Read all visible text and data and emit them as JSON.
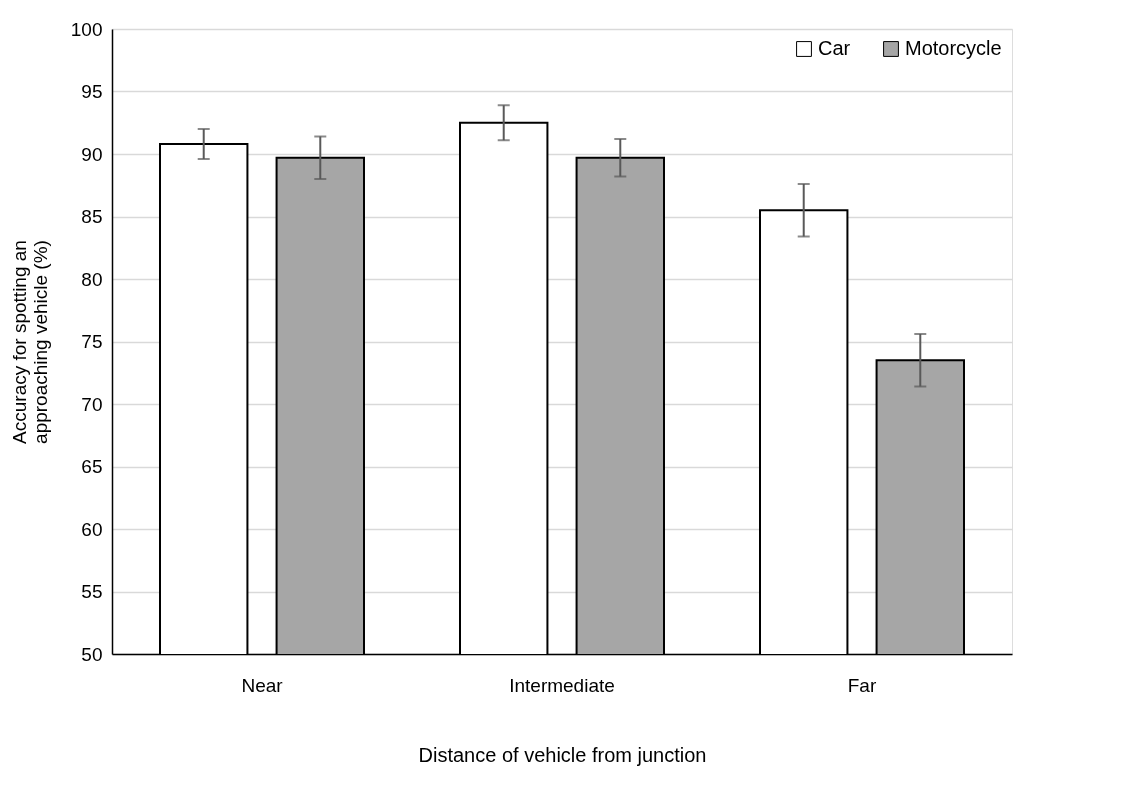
{
  "chart_data": {
    "type": "bar",
    "xlabel": "Distance of vehicle from junction",
    "ylabel": "Accuracy for spotting an\napproaching vehicle (%)",
    "categories": [
      "Near",
      "Intermediate",
      "Far"
    ],
    "series": [
      {
        "name": "Car",
        "color": "#ffffff",
        "values": [
          90.8,
          92.5,
          85.5
        ],
        "errors": [
          1.2,
          1.4,
          2.1
        ]
      },
      {
        "name": "Motorcycle",
        "color": "#a6a6a6",
        "values": [
          89.7,
          89.7,
          73.5
        ],
        "errors": [
          1.7,
          1.5,
          2.1
        ]
      }
    ],
    "ylim": [
      50,
      100
    ],
    "yticks": [
      50,
      55,
      60,
      65,
      70,
      75,
      80,
      85,
      90,
      95,
      100
    ],
    "grid": "y",
    "legend": "top right"
  }
}
